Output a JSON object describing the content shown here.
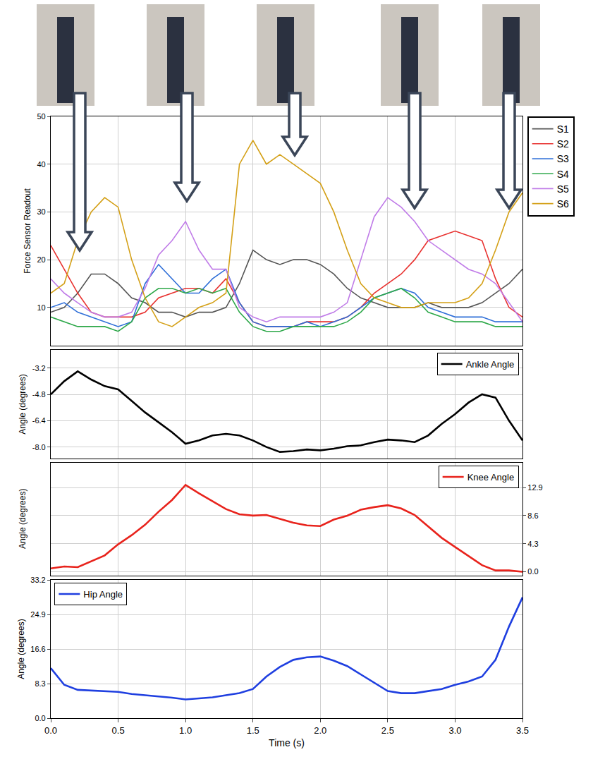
{
  "chart_data": [
    {
      "type": "line",
      "ylabel": "Force Sensor Readout",
      "grid": true,
      "legend": "right",
      "tick_labels": "y",
      "x": [
        0,
        0.1,
        0.2,
        0.3,
        0.4,
        0.5,
        0.6,
        0.7,
        0.8,
        0.9,
        1.0,
        1.1,
        1.2,
        1.3,
        1.4,
        1.5,
        1.6,
        1.7,
        1.8,
        1.9,
        2.0,
        2.1,
        2.2,
        2.3,
        2.4,
        2.5,
        2.6,
        2.7,
        2.8,
        2.9,
        3.0,
        3.1,
        3.2,
        3.3,
        3.4,
        3.5
      ],
      "xlim": [
        0,
        3.5
      ],
      "xticks": [
        {
          "value": 0,
          "label": "0.0"
        },
        0.5,
        {
          "value": 1,
          "label": "1.0"
        },
        1.5,
        {
          "value": 2,
          "label": "2.0"
        },
        2.5,
        {
          "value": 3,
          "label": "3.0"
        },
        3.5
      ],
      "ylim": [
        2,
        50
      ],
      "yticks": [
        10,
        20,
        30,
        40,
        50
      ],
      "series": [
        {
          "name": "S1",
          "color": "#555555",
          "values": [
            9,
            10,
            13,
            17,
            17,
            15,
            12,
            11,
            9,
            9,
            8,
            9,
            9,
            10,
            15,
            22,
            20,
            19,
            20,
            20,
            19,
            17,
            14,
            12,
            11,
            10,
            10,
            10,
            11,
            10,
            10,
            10,
            11,
            13,
            15,
            18
          ]
        },
        {
          "name": "S2",
          "color": "#e8312f",
          "values": [
            23,
            18,
            13,
            9,
            8,
            8,
            8,
            9,
            12,
            13,
            14,
            14,
            13,
            16,
            11,
            7,
            6,
            6,
            6,
            7,
            7,
            7,
            8,
            10,
            13,
            15,
            17,
            20,
            24,
            25,
            26,
            25,
            24,
            16,
            10,
            8
          ]
        },
        {
          "name": "S3",
          "color": "#2f6fd8",
          "values": [
            10,
            11,
            9,
            8,
            7,
            6,
            7,
            15,
            19,
            16,
            13,
            13,
            16,
            18,
            11,
            7,
            6,
            6,
            6,
            7,
            6,
            7,
            8,
            10,
            12,
            13,
            14,
            13,
            10,
            9,
            8,
            8,
            8,
            7,
            7,
            7
          ]
        },
        {
          "name": "S4",
          "color": "#2ea84a",
          "values": [
            8,
            7,
            6,
            6,
            6,
            5,
            7,
            12,
            14,
            14,
            13,
            14,
            13,
            14,
            9,
            6,
            5,
            5,
            6,
            6,
            6,
            6,
            7,
            9,
            12,
            13,
            14,
            12,
            9,
            8,
            7,
            7,
            7,
            6,
            6,
            6
          ]
        },
        {
          "name": "S5",
          "color": "#c07ce8",
          "values": [
            16,
            13,
            11,
            9,
            8,
            8,
            9,
            14,
            21,
            24,
            28,
            22,
            18,
            18,
            10,
            8,
            7,
            8,
            8,
            8,
            8,
            9,
            11,
            20,
            29,
            33,
            31,
            28,
            24,
            22,
            20,
            18,
            17,
            15,
            11,
            7
          ]
        },
        {
          "name": "S6",
          "color": "#d4a017",
          "values": [
            13,
            15,
            24,
            30,
            33,
            31,
            20,
            12,
            7,
            6,
            8,
            10,
            11,
            13,
            40,
            45,
            40,
            42,
            40,
            38,
            36,
            30,
            22,
            15,
            12,
            11,
            10,
            10,
            11,
            11,
            11,
            12,
            15,
            22,
            30,
            34
          ]
        }
      ]
    },
    {
      "type": "line",
      "ylabel": "Angle (degrees)",
      "grid": true,
      "legend": "top right",
      "tick_labels": "y",
      "x": [
        0,
        0.1,
        0.2,
        0.3,
        0.4,
        0.5,
        0.6,
        0.7,
        0.8,
        0.9,
        1.0,
        1.1,
        1.2,
        1.3,
        1.4,
        1.5,
        1.6,
        1.7,
        1.8,
        1.9,
        2.0,
        2.1,
        2.2,
        2.3,
        2.4,
        2.5,
        2.6,
        2.7,
        2.8,
        2.9,
        3.0,
        3.1,
        3.2,
        3.3,
        3.4,
        3.5
      ],
      "xlim": [
        0,
        3.5
      ],
      "xticks": [
        {
          "value": 0,
          "label": "0.0"
        },
        0.5,
        {
          "value": 1,
          "label": "1.0"
        },
        1.5,
        {
          "value": 2,
          "label": "2.0"
        },
        2.5,
        {
          "value": 3,
          "label": "3.0"
        },
        3.5
      ],
      "ylim": [
        -8.7,
        -2.1
      ],
      "yticks": [
        -3.2,
        -4.8,
        -6.4,
        {
          "value": -8,
          "label": "-8.0"
        }
      ],
      "series": [
        {
          "name": "Ankle Angle",
          "color": "#000000",
          "values": [
            -4.8,
            -4.0,
            -3.4,
            -3.9,
            -4.3,
            -4.5,
            -5.2,
            -5.9,
            -6.5,
            -7.1,
            -7.8,
            -7.6,
            -7.3,
            -7.2,
            -7.3,
            -7.6,
            -8.0,
            -8.3,
            -8.25,
            -8.15,
            -8.2,
            -8.1,
            -7.95,
            -7.9,
            -7.7,
            -7.55,
            -7.6,
            -7.7,
            -7.3,
            -6.6,
            -6.0,
            -5.3,
            -4.8,
            -5.0,
            -6.4,
            -7.6
          ]
        }
      ]
    },
    {
      "type": "line",
      "ylabel": "Angle (degrees)",
      "grid": true,
      "legend": "top right",
      "tick_labels": "y",
      "x": [
        0,
        0.1,
        0.2,
        0.3,
        0.4,
        0.5,
        0.6,
        0.7,
        0.8,
        0.9,
        1.0,
        1.1,
        1.2,
        1.3,
        1.4,
        1.5,
        1.6,
        1.7,
        1.8,
        1.9,
        2.0,
        2.1,
        2.2,
        2.3,
        2.4,
        2.5,
        2.6,
        2.7,
        2.8,
        2.9,
        3.0,
        3.1,
        3.2,
        3.3,
        3.4,
        3.5
      ],
      "xlim": [
        0,
        3.5
      ],
      "xticks": [
        {
          "value": 0,
          "label": "0.0"
        },
        0.5,
        {
          "value": 1,
          "label": "1.0"
        },
        1.5,
        {
          "value": 2,
          "label": "2.0"
        },
        2.5,
        {
          "value": 3,
          "label": "3.0"
        },
        3.5
      ],
      "ylim": [
        -0.6,
        16.7
      ],
      "yticks": [
        {
          "value": 0,
          "label": "0.0"
        },
        4.3,
        8.6,
        12.9
      ],
      "series": [
        {
          "name": "Knee Angle",
          "color": "#e8231c",
          "values": [
            0.5,
            0.8,
            0.7,
            1.6,
            2.5,
            4.2,
            5.6,
            7.2,
            9.2,
            11.0,
            13.3,
            12.0,
            10.8,
            9.6,
            8.8,
            8.6,
            8.7,
            8.1,
            7.5,
            7.1,
            7.0,
            8.0,
            8.6,
            9.5,
            9.9,
            10.2,
            9.7,
            8.7,
            6.9,
            5.2,
            3.8,
            2.4,
            1.0,
            0.2,
            0.2,
            0.0
          ]
        }
      ]
    },
    {
      "type": "line",
      "ylabel": "Angle (degrees)",
      "xlabel": "Time (s)",
      "grid": true,
      "legend": "top left",
      "tick_labels": true,
      "x": [
        0,
        0.1,
        0.2,
        0.3,
        0.4,
        0.5,
        0.6,
        0.7,
        0.8,
        0.9,
        1.0,
        1.1,
        1.2,
        1.3,
        1.4,
        1.5,
        1.6,
        1.7,
        1.8,
        1.9,
        2.0,
        2.1,
        2.2,
        2.3,
        2.4,
        2.5,
        2.6,
        2.7,
        2.8,
        2.9,
        3.0,
        3.1,
        3.2,
        3.3,
        3.4,
        3.5
      ],
      "xlim": [
        0,
        3.5
      ],
      "xticks": [
        {
          "value": 0,
          "label": "0.0"
        },
        0.5,
        {
          "value": 1,
          "label": "1.0"
        },
        1.5,
        {
          "value": 2,
          "label": "2.0"
        },
        2.5,
        {
          "value": 3,
          "label": "3.0"
        },
        3.5
      ],
      "ylim": [
        0,
        33.2
      ],
      "yticks": [
        {
          "value": 0,
          "label": "0.0"
        },
        8.3,
        16.6,
        24.9,
        33.2
      ],
      "series": [
        {
          "name": "Hip Angle",
          "color": "#1f3fe0",
          "values": [
            12,
            8,
            6.8,
            6.6,
            6.5,
            6.3,
            5.8,
            5.5,
            5.3,
            4.9,
            4.5,
            4.7,
            5.0,
            5.5,
            6.0,
            7.0,
            10.0,
            12.3,
            14.0,
            14.6,
            14.8,
            13.8,
            12.5,
            10.5,
            8.5,
            6.5,
            6.0,
            6.0,
            6.5,
            7.0,
            8.0,
            8.8,
            10.0,
            14.0,
            22.0,
            29.0
          ]
        }
      ]
    }
  ]
}
